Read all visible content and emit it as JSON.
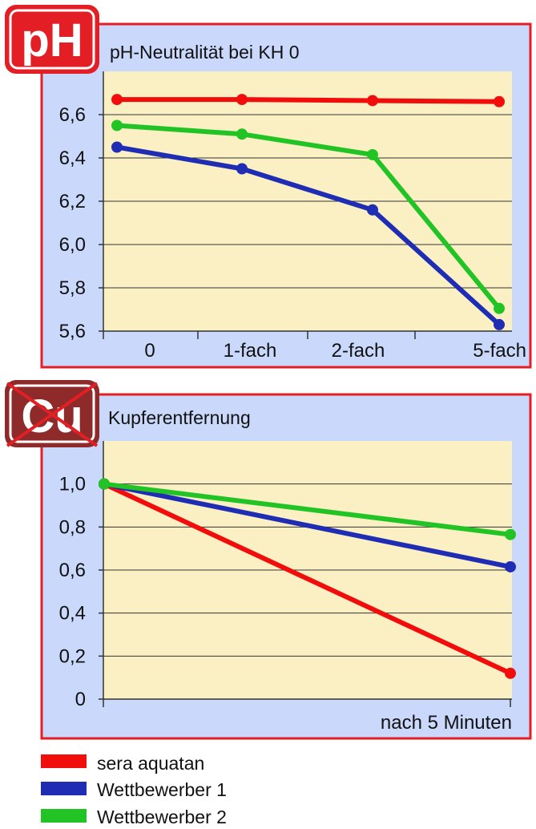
{
  "colors": {
    "panel_border": "#e31e24",
    "panel_fill": "#c9d8fb",
    "plot_fill": "#fbf0c4",
    "series_red": "#f20d0d",
    "series_blue": "#1f2cb4",
    "series_green": "#22c425",
    "badge_red": "#e31e24",
    "badge_brown": "#8e2a2a",
    "cross_red": "#e31e24"
  },
  "badges": {
    "ph": {
      "text": "pH"
    },
    "cu": {
      "text": "Cu",
      "icon": "crossed-out-cu-icon"
    }
  },
  "legend": [
    {
      "label": "sera aquatan",
      "color": "#f20d0d"
    },
    {
      "label": "Wettbewerber 1",
      "color": "#1f2cb4"
    },
    {
      "label": "Wettbewerber 2",
      "color": "#22c425"
    }
  ],
  "chart_data": [
    {
      "type": "line",
      "title": "pH-Neutralität bei KH 0",
      "categories": [
        "0",
        "1-fach",
        "2-fach",
        "5-fach"
      ],
      "ylim": [
        5.6,
        6.8
      ],
      "yticks": [
        5.6,
        5.8,
        6.0,
        6.2,
        6.4,
        6.6
      ],
      "ytick_labels": [
        "5,6",
        "5,8",
        "6,0",
        "6,2",
        "6,4",
        "6,6"
      ],
      "grid": true,
      "series": [
        {
          "name": "sera aquatan",
          "color": "#f20d0d",
          "values": [
            6.67,
            6.67,
            6.665,
            6.66
          ]
        },
        {
          "name": "Wettbewerber 1",
          "color": "#1f2cb4",
          "values": [
            6.45,
            6.35,
            6.16,
            5.63
          ]
        },
        {
          "name": "Wettbewerber 2",
          "color": "#22c425",
          "values": [
            6.55,
            6.51,
            6.415,
            5.705
          ]
        }
      ]
    },
    {
      "type": "line",
      "title": "Kupferentfernung",
      "xlabel": "nach 5 Minuten",
      "x": [
        0,
        1
      ],
      "ylim": [
        0,
        1.2
      ],
      "yticks": [
        0,
        0.2,
        0.4,
        0.6,
        0.8,
        1.0
      ],
      "ytick_labels": [
        "0",
        "0,2",
        "0,4",
        "0,6",
        "0,8",
        "1,0"
      ],
      "grid": true,
      "series": [
        {
          "name": "sera aquatan",
          "color": "#f20d0d",
          "values": [
            1.0,
            0.12
          ]
        },
        {
          "name": "Wettbewerber 1",
          "color": "#1f2cb4",
          "values": [
            1.0,
            0.615
          ]
        },
        {
          "name": "Wettbewerber 2",
          "color": "#22c425",
          "values": [
            1.0,
            0.765
          ]
        }
      ]
    }
  ]
}
